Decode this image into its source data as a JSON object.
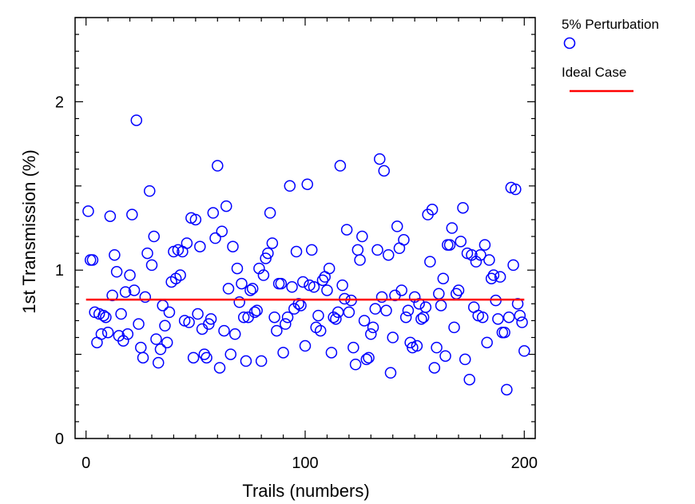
{
  "chart_data": {
    "type": "scatter",
    "title": "",
    "xlabel": "Trails (numbers)",
    "ylabel": "1st Transmission (%)",
    "xlim": [
      -5,
      205
    ],
    "ylim": [
      0,
      2.5
    ],
    "x_ticks": [
      0,
      100,
      200
    ],
    "x_tick_labels": [
      "0",
      "100",
      "200"
    ],
    "y_ticks": [
      0,
      1,
      2
    ],
    "y_tick_labels": [
      "0",
      "1",
      "2"
    ],
    "grid": false,
    "legend_position": "outside-top-right",
    "series": [
      {
        "name": "5% Perturbation",
        "marker": "circle-open",
        "color": "#0000ff",
        "points": [
          [
            1,
            1.35
          ],
          [
            2,
            1.06
          ],
          [
            3,
            1.06
          ],
          [
            4,
            0.75
          ],
          [
            5,
            0.57
          ],
          [
            6,
            0.74
          ],
          [
            7,
            0.62
          ],
          [
            8,
            0.73
          ],
          [
            9,
            0.72
          ],
          [
            10,
            0.63
          ],
          [
            11,
            1.32
          ],
          [
            12,
            0.85
          ],
          [
            13,
            1.09
          ],
          [
            14,
            0.99
          ],
          [
            15,
            0.61
          ],
          [
            16,
            0.74
          ],
          [
            17,
            0.58
          ],
          [
            18,
            0.87
          ],
          [
            19,
            0.62
          ],
          [
            20,
            0.97
          ],
          [
            21,
            1.33
          ],
          [
            22,
            0.88
          ],
          [
            23,
            1.89
          ],
          [
            24,
            0.68
          ],
          [
            25,
            0.54
          ],
          [
            26,
            0.48
          ],
          [
            27,
            0.84
          ],
          [
            28,
            1.1
          ],
          [
            29,
            1.47
          ],
          [
            30,
            1.03
          ],
          [
            31,
            1.2
          ],
          [
            32,
            0.59
          ],
          [
            33,
            0.45
          ],
          [
            34,
            0.53
          ],
          [
            35,
            0.79
          ],
          [
            36,
            0.67
          ],
          [
            37,
            0.57
          ],
          [
            38,
            0.75
          ],
          [
            39,
            0.93
          ],
          [
            40,
            1.11
          ],
          [
            41,
            0.95
          ],
          [
            42,
            1.12
          ],
          [
            43,
            0.97
          ],
          [
            44,
            1.11
          ],
          [
            45,
            0.7
          ],
          [
            46,
            1.16
          ],
          [
            47,
            0.69
          ],
          [
            48,
            1.31
          ],
          [
            49,
            0.48
          ],
          [
            50,
            1.3
          ],
          [
            51,
            0.74
          ],
          [
            52,
            1.14
          ],
          [
            53,
            0.65
          ],
          [
            54,
            0.5
          ],
          [
            55,
            0.48
          ],
          [
            56,
            0.68
          ],
          [
            57,
            0.71
          ],
          [
            58,
            1.34
          ],
          [
            59,
            1.19
          ],
          [
            60,
            1.62
          ],
          [
            61,
            0.42
          ],
          [
            62,
            1.23
          ],
          [
            63,
            0.64
          ],
          [
            64,
            1.38
          ],
          [
            65,
            0.89
          ],
          [
            66,
            0.5
          ],
          [
            67,
            1.14
          ],
          [
            68,
            0.62
          ],
          [
            69,
            1.01
          ],
          [
            70,
            0.81
          ],
          [
            71,
            0.92
          ],
          [
            72,
            0.72
          ],
          [
            73,
            0.46
          ],
          [
            74,
            0.72
          ],
          [
            75,
            0.88
          ],
          [
            76,
            0.89
          ],
          [
            77,
            0.75
          ],
          [
            78,
            0.76
          ],
          [
            79,
            1.01
          ],
          [
            80,
            0.46
          ],
          [
            81,
            0.97
          ],
          [
            82,
            1.07
          ],
          [
            83,
            1.1
          ],
          [
            84,
            1.34
          ],
          [
            85,
            1.16
          ],
          [
            86,
            0.72
          ],
          [
            87,
            0.64
          ],
          [
            88,
            0.92
          ],
          [
            89,
            0.92
          ],
          [
            90,
            0.51
          ],
          [
            91,
            0.68
          ],
          [
            92,
            0.72
          ],
          [
            93,
            1.5
          ],
          [
            94,
            0.9
          ],
          [
            95,
            0.77
          ],
          [
            96,
            1.11
          ],
          [
            97,
            0.8
          ],
          [
            98,
            0.79
          ],
          [
            99,
            0.93
          ],
          [
            100,
            0.55
          ],
          [
            101,
            1.51
          ],
          [
            102,
            0.91
          ],
          [
            103,
            1.12
          ],
          [
            104,
            0.9
          ],
          [
            105,
            0.66
          ],
          [
            106,
            0.73
          ],
          [
            107,
            0.64
          ],
          [
            108,
            0.94
          ],
          [
            109,
            0.96
          ],
          [
            110,
            0.88
          ],
          [
            111,
            1.01
          ],
          [
            112,
            0.51
          ],
          [
            113,
            0.72
          ],
          [
            114,
            0.71
          ],
          [
            115,
            0.75
          ],
          [
            116,
            1.62
          ],
          [
            117,
            0.91
          ],
          [
            118,
            0.83
          ],
          [
            119,
            1.24
          ],
          [
            120,
            0.75
          ],
          [
            121,
            0.82
          ],
          [
            122,
            0.54
          ],
          [
            123,
            0.44
          ],
          [
            124,
            1.12
          ],
          [
            125,
            1.06
          ],
          [
            126,
            1.2
          ],
          [
            127,
            0.7
          ],
          [
            128,
            0.47
          ],
          [
            129,
            0.48
          ],
          [
            130,
            0.62
          ],
          [
            131,
            0.66
          ],
          [
            132,
            0.77
          ],
          [
            133,
            1.12
          ],
          [
            134,
            1.66
          ],
          [
            135,
            0.84
          ],
          [
            136,
            1.59
          ],
          [
            137,
            0.76
          ],
          [
            138,
            1.09
          ],
          [
            139,
            0.39
          ],
          [
            140,
            0.6
          ],
          [
            141,
            0.85
          ],
          [
            142,
            1.26
          ],
          [
            143,
            1.13
          ],
          [
            144,
            0.88
          ],
          [
            145,
            1.18
          ],
          [
            146,
            0.72
          ],
          [
            147,
            0.76
          ],
          [
            148,
            0.57
          ],
          [
            149,
            0.54
          ],
          [
            150,
            0.84
          ],
          [
            151,
            0.55
          ],
          [
            152,
            0.8
          ],
          [
            153,
            0.71
          ],
          [
            154,
            0.72
          ],
          [
            155,
            0.78
          ],
          [
            156,
            1.33
          ],
          [
            157,
            1.05
          ],
          [
            158,
            1.36
          ],
          [
            159,
            0.42
          ],
          [
            160,
            0.54
          ],
          [
            161,
            0.86
          ],
          [
            162,
            0.79
          ],
          [
            163,
            0.95
          ],
          [
            164,
            0.49
          ],
          [
            165,
            1.15
          ],
          [
            166,
            1.15
          ],
          [
            167,
            1.25
          ],
          [
            168,
            0.66
          ],
          [
            169,
            0.86
          ],
          [
            170,
            0.88
          ],
          [
            171,
            1.17
          ],
          [
            172,
            1.37
          ],
          [
            173,
            0.47
          ],
          [
            174,
            1.1
          ],
          [
            175,
            0.35
          ],
          [
            176,
            1.09
          ],
          [
            177,
            0.78
          ],
          [
            178,
            1.05
          ],
          [
            179,
            0.73
          ],
          [
            180,
            1.09
          ],
          [
            181,
            0.72
          ],
          [
            182,
            1.15
          ],
          [
            183,
            0.57
          ],
          [
            184,
            1.06
          ],
          [
            185,
            0.95
          ],
          [
            186,
            0.97
          ],
          [
            187,
            0.82
          ],
          [
            188,
            0.71
          ],
          [
            189,
            0.96
          ],
          [
            190,
            0.63
          ],
          [
            191,
            0.63
          ],
          [
            192,
            0.29
          ],
          [
            193,
            0.72
          ],
          [
            194,
            1.49
          ],
          [
            195,
            1.03
          ],
          [
            196,
            1.48
          ],
          [
            197,
            0.8
          ],
          [
            198,
            0.73
          ],
          [
            199,
            0.69
          ],
          [
            200,
            0.52
          ]
        ]
      },
      {
        "name": "Ideal Case",
        "marker": "line",
        "color": "#ff0000",
        "points": [
          [
            0,
            0.825
          ],
          [
            200,
            0.825
          ]
        ]
      }
    ]
  }
}
